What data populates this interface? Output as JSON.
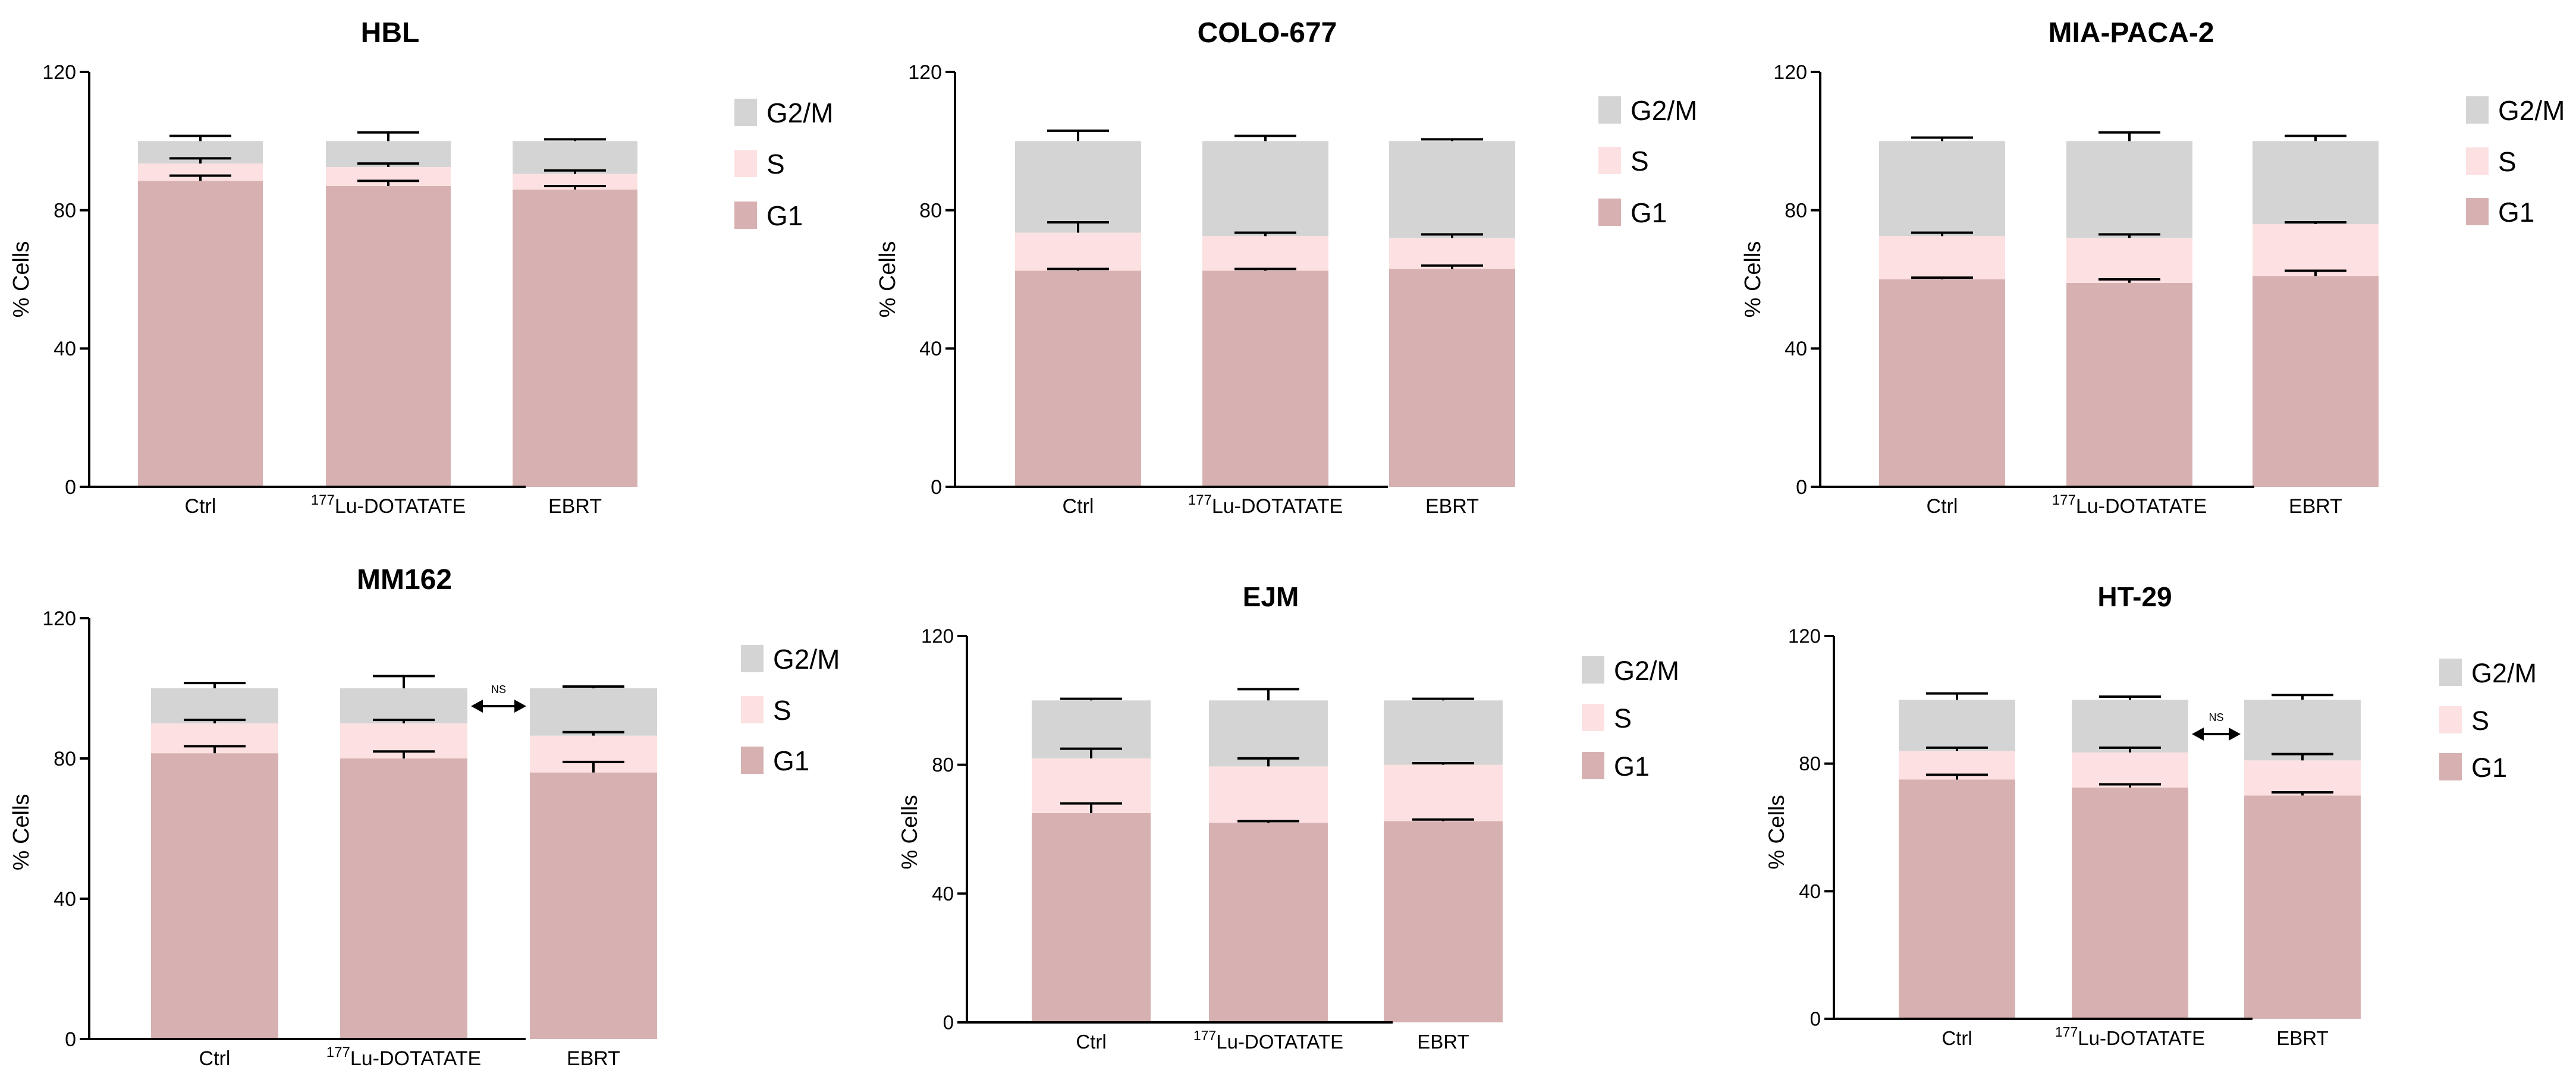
{
  "colors": {
    "G2/M": "#d4d4d4",
    "S": "#fde1e2",
    "G1": "#d7b1b1",
    "axis": "#000000"
  },
  "chart_data": [
    {
      "type": "bar",
      "stacked": true,
      "title": "HBL",
      "ylabel": "% Cells",
      "xlabel": "",
      "ylim": [
        0,
        120
      ],
      "yticks": [
        "0",
        "40",
        "80",
        "120"
      ],
      "categories": [
        "Ctrl",
        "177Lu-DOTATATE",
        "EBRT"
      ],
      "series": [
        {
          "name": "G1",
          "values": [
            88.5,
            87,
            86
          ],
          "errors": [
            1.5,
            1.5,
            1
          ]
        },
        {
          "name": "S",
          "values": [
            5,
            5.5,
            4.5
          ],
          "errors": [
            1.5,
            1,
            1
          ]
        },
        {
          "name": "G2/M",
          "values": [
            6.5,
            7.5,
            9.5
          ],
          "errors": [
            1.5,
            2.5,
            0.5
          ]
        }
      ],
      "legend": [
        "G2/M",
        "S",
        "G1"
      ],
      "legend_position": "right",
      "annotation": null
    },
    {
      "type": "bar",
      "stacked": true,
      "title": "COLO-677",
      "ylabel": "% Cells",
      "xlabel": "",
      "ylim": [
        0,
        120
      ],
      "yticks": [
        "0",
        "40",
        "80",
        "120"
      ],
      "categories": [
        "Ctrl",
        "177Lu-DOTATATE",
        "EBRT"
      ],
      "series": [
        {
          "name": "G1",
          "values": [
            62.5,
            62.5,
            63
          ],
          "errors": [
            0.5,
            0.5,
            1
          ]
        },
        {
          "name": "S",
          "values": [
            11,
            10,
            9
          ],
          "errors": [
            3,
            1,
            1
          ]
        },
        {
          "name": "G2/M",
          "values": [
            26.5,
            27.5,
            28
          ],
          "errors": [
            3,
            1.5,
            0.5
          ]
        }
      ],
      "legend": [
        "G2/M",
        "S",
        "G1"
      ],
      "legend_position": "right",
      "annotation": null
    },
    {
      "type": "bar",
      "stacked": true,
      "title": "MIA-PACA-2",
      "ylabel": "% Cells",
      "xlabel": "",
      "ylim": [
        0,
        120
      ],
      "yticks": [
        "0",
        "40",
        "80",
        "120"
      ],
      "categories": [
        "Ctrl",
        "177Lu-DOTATATE",
        "EBRT"
      ],
      "series": [
        {
          "name": "G1",
          "values": [
            60,
            59,
            61
          ],
          "errors": [
            0.5,
            1,
            1.5
          ]
        },
        {
          "name": "S",
          "values": [
            12.5,
            13,
            15
          ],
          "errors": [
            1,
            1,
            0.5
          ]
        },
        {
          "name": "G2/M",
          "values": [
            27.5,
            28,
            24
          ],
          "errors": [
            1,
            2.5,
            1.5
          ]
        }
      ],
      "legend": [
        "G2/M",
        "S",
        "G1"
      ],
      "legend_position": "right",
      "annotation": null
    },
    {
      "type": "bar",
      "stacked": true,
      "title": "MM162",
      "ylabel": "% Cells",
      "xlabel": "",
      "ylim": [
        0,
        120
      ],
      "yticks": [
        "0",
        "40",
        "80",
        "120"
      ],
      "categories": [
        "Ctrl",
        "177Lu-DOTATATE",
        "EBRT"
      ],
      "series": [
        {
          "name": "G1",
          "values": [
            81.5,
            80,
            76
          ],
          "errors": [
            2,
            2,
            3
          ]
        },
        {
          "name": "S",
          "values": [
            8.5,
            10,
            10.5
          ],
          "errors": [
            1,
            1,
            1
          ]
        },
        {
          "name": "G2/M",
          "values": [
            10,
            10,
            13.5
          ],
          "errors": [
            1.5,
            3.5,
            0.5
          ]
        }
      ],
      "legend": [
        "G2/M",
        "S",
        "G1"
      ],
      "legend_position": "right",
      "annotation": {
        "text": "NS",
        "between": [
          1,
          2
        ]
      }
    },
    {
      "type": "bar",
      "stacked": true,
      "title": "EJM",
      "ylabel": "% Cells",
      "xlabel": "",
      "ylim": [
        0,
        120
      ],
      "yticks": [
        "0",
        "40",
        "80",
        "120"
      ],
      "categories": [
        "Ctrl",
        "177Lu-DOTATATE",
        "EBRT"
      ],
      "series": [
        {
          "name": "G1",
          "values": [
            65,
            62,
            62.5
          ],
          "errors": [
            3,
            0.5,
            0.5
          ]
        },
        {
          "name": "S",
          "values": [
            17,
            17.5,
            17.5
          ],
          "errors": [
            3,
            2.5,
            0.5
          ]
        },
        {
          "name": "G2/M",
          "values": [
            18,
            20.5,
            20
          ],
          "errors": [
            0.5,
            3.5,
            0.5
          ]
        }
      ],
      "legend": [
        "G2/M",
        "S",
        "G1"
      ],
      "legend_position": "right",
      "annotation": null
    },
    {
      "type": "bar",
      "stacked": true,
      "title": "HT-29",
      "ylabel": "% Cells",
      "xlabel": "",
      "ylim": [
        0,
        120
      ],
      "yticks": [
        "0",
        "40",
        "80",
        "120"
      ],
      "categories": [
        "Ctrl",
        "177Lu-DOTATATE",
        "EBRT"
      ],
      "series": [
        {
          "name": "G1",
          "values": [
            75,
            72.5,
            70
          ],
          "errors": [
            1.5,
            1,
            1
          ]
        },
        {
          "name": "S",
          "values": [
            9,
            11,
            11
          ],
          "errors": [
            1,
            1.5,
            2
          ]
        },
        {
          "name": "G2/M",
          "values": [
            16,
            16.5,
            19
          ],
          "errors": [
            2,
            1,
            1.5
          ]
        }
      ],
      "legend": [
        "G2/M",
        "S",
        "G1"
      ],
      "legend_position": "right",
      "annotation": {
        "text": "NS",
        "between": [
          1,
          2
        ]
      }
    }
  ]
}
